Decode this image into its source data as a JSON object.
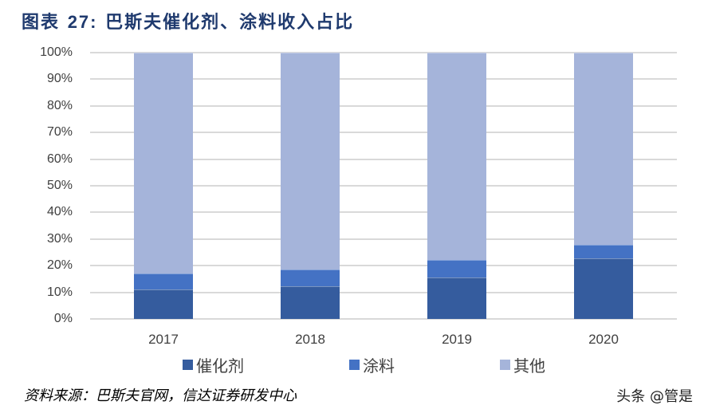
{
  "title": {
    "prefix": "图表",
    "number": "27:",
    "text": "巴斯夫催化剂、涂料收入占比"
  },
  "source": "资料来源：巴斯夫官网，信达证券研发中心",
  "watermark": "头条 @管是",
  "colors": {
    "催化剂": "#355c9e",
    "涂料": "#4472c4",
    "其他": "#a5b4da",
    "grid": "#d9d9d9",
    "title": "#1f3a6e"
  },
  "chart_data": {
    "type": "bar",
    "stacked": true,
    "percent_stacked": true,
    "title": "图表 27：巴斯夫催化剂、涂料收入占比",
    "categories": [
      "2017",
      "2018",
      "2019",
      "2020"
    ],
    "series": [
      {
        "name": "催化剂",
        "color": "#355c9e",
        "values": [
          11.0,
          12.4,
          15.5,
          22.7
        ]
      },
      {
        "name": "涂料",
        "color": "#4472c4",
        "values": [
          6.0,
          6.2,
          6.7,
          5.1
        ]
      },
      {
        "name": "其他",
        "color": "#a5b4da",
        "values": [
          83.0,
          81.4,
          77.8,
          72.2
        ]
      }
    ],
    "xlabel": "",
    "ylabel": "",
    "ylim": [
      0,
      100
    ],
    "yticks": [
      "0%",
      "10%",
      "20%",
      "30%",
      "40%",
      "50%",
      "60%",
      "70%",
      "80%",
      "90%",
      "100%"
    ],
    "grid": true,
    "legend_position": "bottom",
    "legend": [
      "催化剂",
      "涂料",
      "其他"
    ]
  }
}
